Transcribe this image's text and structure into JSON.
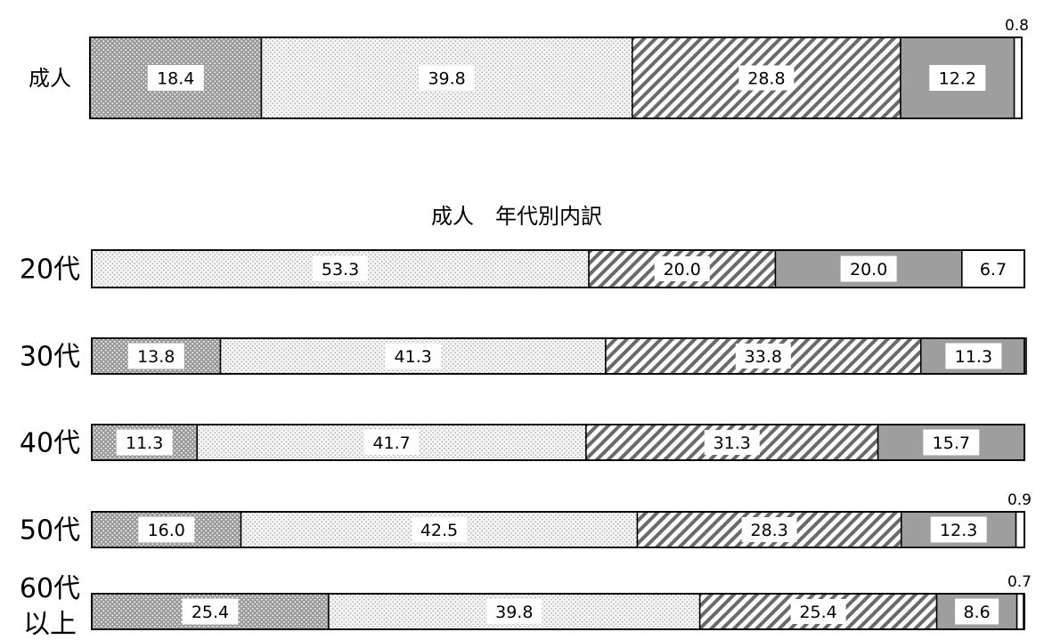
{
  "top_heading": "",
  "section_title": "成人　年代別内訳",
  "patterns": [
    "dense-dots",
    "light-dots",
    "diagonal-hatch",
    "solid-gray",
    "white"
  ],
  "colors": {
    "dense_dots_bg": "#9a9a9a",
    "light_dots_bg": "#ececec",
    "hatch_line": "#6a6a6a",
    "solid_gray": "#9e9e9e",
    "white": "#ffffff"
  },
  "chart_data": [
    {
      "type": "bar",
      "orientation": "horizontal",
      "stacked": true,
      "categories": [
        "成人"
      ],
      "series": [
        {
          "values": [
            18.4
          ]
        },
        {
          "values": [
            39.8
          ]
        },
        {
          "values": [
            28.8
          ]
        },
        {
          "values": [
            12.2
          ]
        },
        {
          "values": [
            0.8
          ]
        }
      ],
      "xlim": [
        0,
        100
      ]
    },
    {
      "type": "bar",
      "orientation": "horizontal",
      "stacked": true,
      "title": "成人　年代別内訳",
      "categories": [
        "20代",
        "30代",
        "40代",
        "50代",
        "60代\n以上"
      ],
      "series": [
        {
          "values": [
            0,
            13.8,
            11.3,
            16.0,
            25.4
          ]
        },
        {
          "values": [
            53.3,
            41.3,
            41.7,
            42.5,
            39.8
          ]
        },
        {
          "values": [
            20.0,
            33.8,
            31.3,
            28.3,
            25.4
          ]
        },
        {
          "values": [
            20.0,
            11.3,
            15.7,
            12.3,
            8.6
          ]
        },
        {
          "values": [
            6.7,
            0,
            0,
            0.9,
            0.7
          ]
        }
      ],
      "xlim": [
        0,
        100
      ]
    }
  ]
}
